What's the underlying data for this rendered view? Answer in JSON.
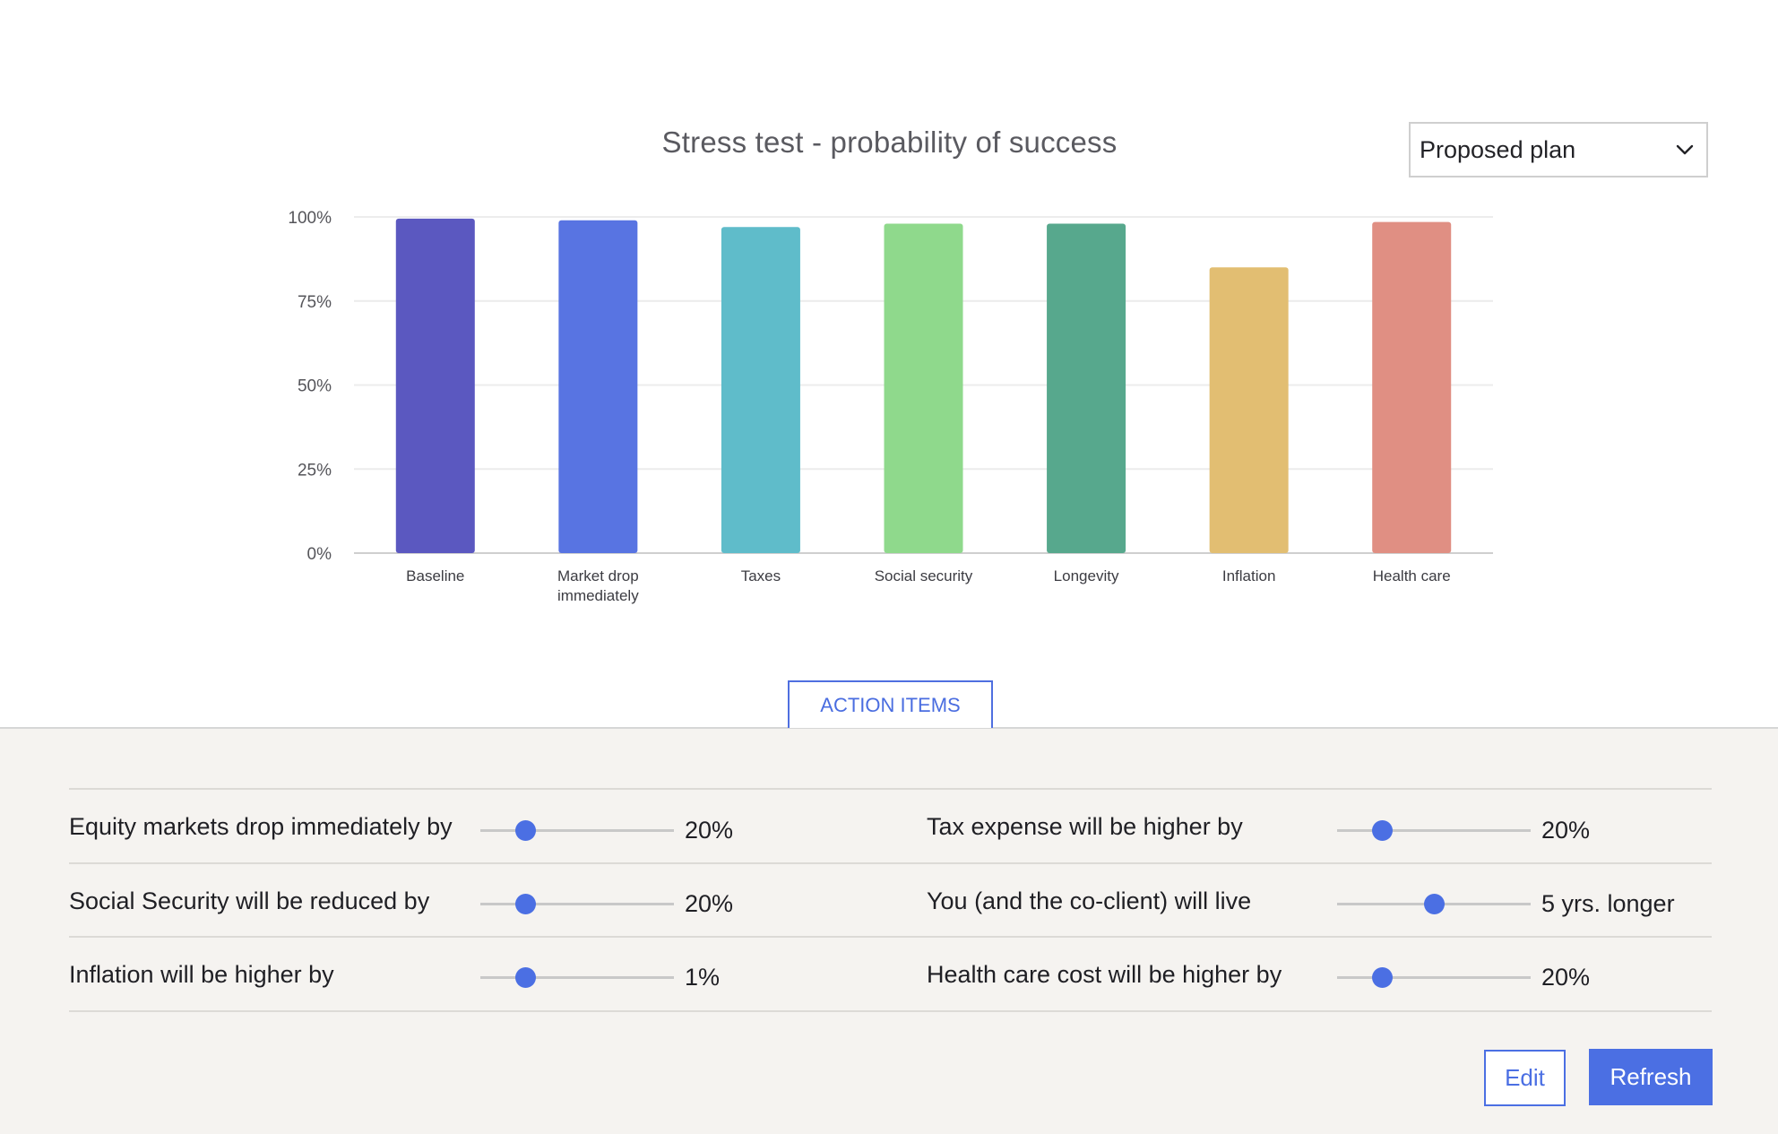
{
  "header": {
    "title": "Stress test - probability of success",
    "plan_selector": {
      "selected": "Proposed plan"
    }
  },
  "chart_data": {
    "type": "bar",
    "title": "Stress test - probability of success",
    "categories": [
      "Baseline",
      "Market drop immediately",
      "Taxes",
      "Social security",
      "Longevity",
      "Inflation",
      "Health care"
    ],
    "category_lines": [
      [
        "Baseline"
      ],
      [
        "Market drop",
        "immediately"
      ],
      [
        "Taxes"
      ],
      [
        "Social security"
      ],
      [
        "Longevity"
      ],
      [
        "Inflation"
      ],
      [
        "Health care"
      ]
    ],
    "values": [
      99.5,
      99,
      97,
      98,
      98,
      85,
      98.5
    ],
    "colors": [
      "#5b58c0",
      "#5874e2",
      "#5fbcca",
      "#8fd98c",
      "#57a88d",
      "#e2be72",
      "#e08f83"
    ],
    "yticks": [
      "0%",
      "25%",
      "50%",
      "75%",
      "100%"
    ],
    "ytick_values": [
      0,
      25,
      50,
      75,
      100
    ],
    "ylim": [
      0,
      100
    ],
    "xlabel": "",
    "ylabel": "",
    "grid": true
  },
  "action_tab": {
    "label": "ACTION ITEMS"
  },
  "sliders": [
    {
      "label": "Equity markets drop immediately by",
      "value": "20%",
      "position": 0.23
    },
    {
      "label": "Tax expense will be higher by",
      "value": "20%",
      "position": 0.23
    },
    {
      "label": "Social Security will be reduced by",
      "value": "20%",
      "position": 0.23
    },
    {
      "label": "You (and the co-client) will live",
      "value": "5 yrs. longer",
      "position": 0.5
    },
    {
      "label": "Inflation will be higher by",
      "value": "1%",
      "position": 0.23
    },
    {
      "label": "Health care cost will be higher by",
      "value": "20%",
      "position": 0.23
    }
  ],
  "buttons": {
    "edit": "Edit",
    "refresh": "Refresh"
  },
  "colors": {
    "accent": "#4b6fe3",
    "panel_bg": "#f5f3f0"
  }
}
